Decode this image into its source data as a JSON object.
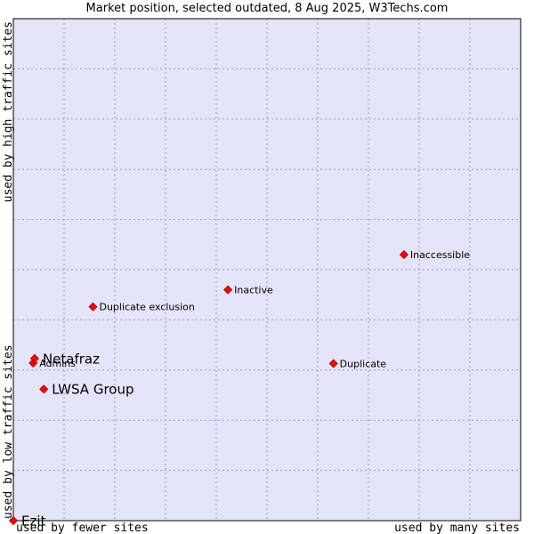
{
  "chart_data": {
    "type": "scatter",
    "title": "Market position, selected outdated, 8 Aug 2025, W3Techs.com",
    "xlabel_low": "used by fewer sites",
    "xlabel_high": "used by many sites",
    "ylabel_low": "used by low traffic sites",
    "ylabel_high": "used by high traffic sites",
    "xlim": [
      0,
      100
    ],
    "ylim": [
      0,
      100
    ],
    "grid": true,
    "colors": {
      "plot_background": "#e4e4f8",
      "grid": "#9a9ac0",
      "marker": "#ff0000",
      "marker_outline": "#b00000"
    },
    "points": [
      {
        "label": "Inaccessible",
        "x": 77.0,
        "y": 53.0,
        "highlight": false
      },
      {
        "label": "Inactive",
        "x": 42.3,
        "y": 46.0,
        "highlight": false
      },
      {
        "label": "Duplicate exclusion",
        "x": 15.7,
        "y": 42.6,
        "highlight": false
      },
      {
        "label": "Duplicate",
        "x": 63.1,
        "y": 31.3,
        "highlight": false
      },
      {
        "label": "Admins",
        "x": 3.9,
        "y": 31.4,
        "highlight": false
      },
      {
        "label": "Netafraz",
        "x": 4.2,
        "y": 32.3,
        "highlight": true
      },
      {
        "label": "LWSA Group",
        "x": 6.0,
        "y": 26.2,
        "highlight": true
      },
      {
        "label": "Ezit",
        "x": 0.0,
        "y": 0.0,
        "highlight": true
      }
    ]
  }
}
